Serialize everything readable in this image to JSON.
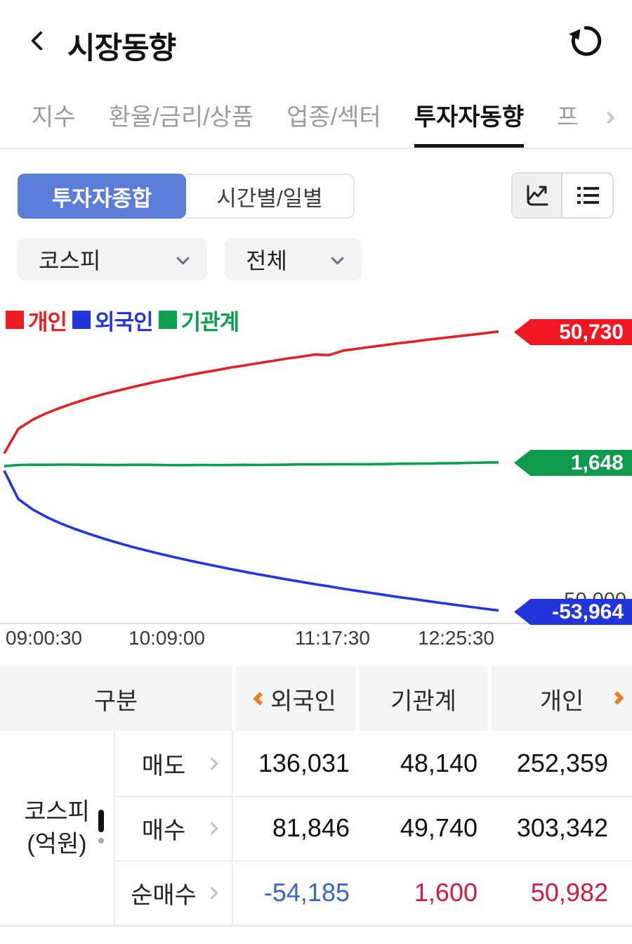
{
  "header": {
    "title": "시장동향"
  },
  "tabs": [
    {
      "label": "지수",
      "active": false
    },
    {
      "label": "환율/금리/상품",
      "active": false
    },
    {
      "label": "업종/섹터",
      "active": false
    },
    {
      "label": "투자자동향",
      "active": true
    },
    {
      "label": "프",
      "active": false
    }
  ],
  "controls": {
    "segments": [
      {
        "label": "투자자종합",
        "active": true
      },
      {
        "label": "시간별/일별",
        "active": false
      }
    ],
    "view_toggle": [
      {
        "icon": "chart-line-icon",
        "selected": true
      },
      {
        "icon": "list-icon",
        "selected": false
      }
    ]
  },
  "filters": {
    "market": "코스피",
    "scope": "전체"
  },
  "legend": {
    "items": [
      {
        "label": "개인",
        "color": "#ee1c23"
      },
      {
        "label": "외국인",
        "color": "#2336dc"
      },
      {
        "label": "기관계",
        "color": "#0d9e4e"
      }
    ]
  },
  "colors": {
    "accent_blue": "#5b7dd8",
    "flag_red": "#ef1822",
    "flag_green": "#109a4e",
    "flag_blue": "#2336dc",
    "table_negative": "#3a64c8",
    "table_positive": "#d2193f",
    "orange_chevron": "#ee7d22"
  },
  "chart_data": {
    "type": "line",
    "title": "",
    "xlabel": "",
    "ylabel": "",
    "x_ticks": [
      "09:00:30",
      "10:09:00",
      "11:17:30",
      "12:25:30"
    ],
    "y_axis_tick": "-50,000",
    "ylim": [
      -58000,
      54000
    ],
    "grid": false,
    "legend_position": "top-left",
    "series": [
      {
        "name": "개인",
        "name_en": "personal",
        "color": "#e02227",
        "end_value": 50730,
        "end_label": "50,730",
        "values": [
          5000,
          14200,
          17600,
          20100,
          22200,
          24000,
          25700,
          27200,
          28500,
          29800,
          31000,
          32200,
          33200,
          34300,
          35300,
          36200,
          37200,
          38000,
          38900,
          39700,
          40600,
          41300,
          42100,
          41900,
          43600,
          44300,
          45000,
          45700,
          46400,
          47000,
          47700,
          48300,
          48900,
          49500,
          50100,
          50730
        ]
      },
      {
        "name": "외국인",
        "name_en": "foreign",
        "color": "#2336dc",
        "end_value": -53964,
        "end_label": "-53,964",
        "values": [
          -1500,
          -12100,
          -16000,
          -18900,
          -21300,
          -23350,
          -25200,
          -26900,
          -28500,
          -30000,
          -31350,
          -32700,
          -33900,
          -35100,
          -36200,
          -37300,
          -38400,
          -39400,
          -40400,
          -41350,
          -42300,
          -43200,
          -44100,
          -44900,
          -45800,
          -46600,
          -47400,
          -48200,
          -49000,
          -49700,
          -50450,
          -51200,
          -51900,
          -52600,
          -53300,
          -53964
        ]
      },
      {
        "name": "기관계",
        "name_en": "institutional",
        "color": "#0d9e4e",
        "end_value": 1648,
        "end_label": "1,648",
        "values": [
          200,
          650,
          750,
          700,
          800,
          760,
          720,
          680,
          640,
          700,
          740,
          640,
          580,
          620,
          660,
          620,
          640,
          700,
          660,
          700,
          760,
          900,
          860,
          900,
          950,
          900,
          950,
          1000,
          1100,
          1150,
          1200,
          1300,
          1350,
          1450,
          1550,
          1648
        ]
      }
    ]
  },
  "table": {
    "corner_label": "구분",
    "columns": [
      "외국인",
      "기관계",
      "개인"
    ],
    "group_label_line1": "코스피",
    "group_label_line2": "(억원)",
    "rows": [
      {
        "label": "매도",
        "values": [
          "136,031",
          "48,140",
          "252,359"
        ]
      },
      {
        "label": "매수",
        "values": [
          "81,846",
          "49,740",
          "303,342"
        ]
      },
      {
        "label": "순매수",
        "values": [
          "-54,185",
          "1,600",
          "50,982"
        ]
      }
    ]
  }
}
